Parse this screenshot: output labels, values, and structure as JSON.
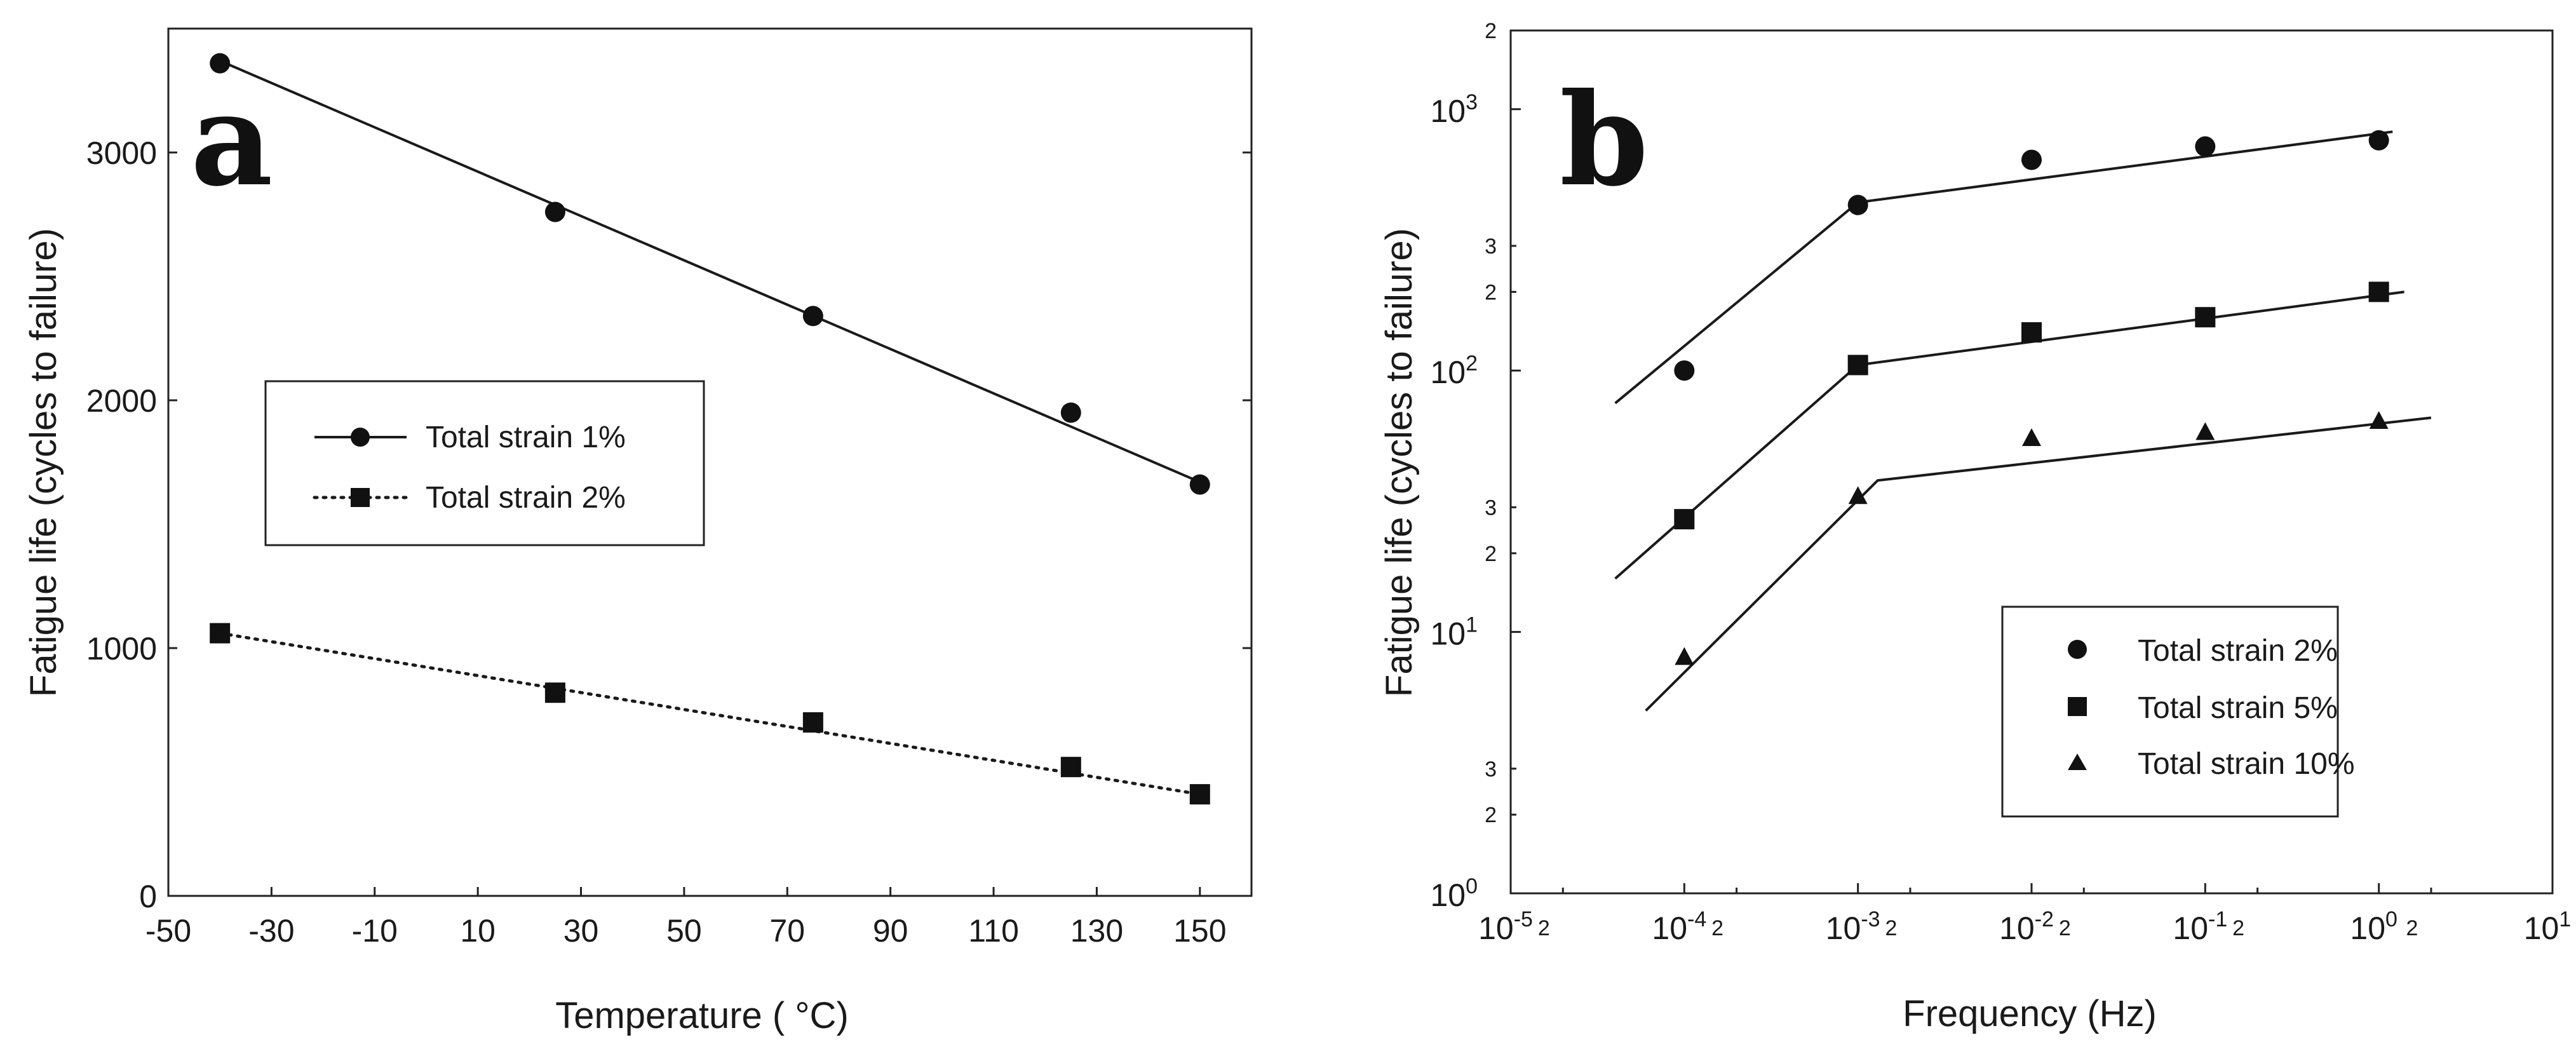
{
  "chart_data": [
    {
      "type": "line",
      "panel_label": "a",
      "xlabel": "Temperature ( °C)",
      "ylabel": "Fatigue life (cycles to failure)",
      "xlim": [
        -50,
        160
      ],
      "ylim": [
        0,
        3500
      ],
      "xticks": [
        -50,
        -30,
        -10,
        10,
        30,
        50,
        70,
        90,
        110,
        130,
        150
      ],
      "yticks": [
        0,
        1000,
        2000,
        3000
      ],
      "legend_position": "center-left",
      "series": [
        {
          "name": "Total strain 1%",
          "marker": "circle",
          "line": "solid",
          "x": [
            -40,
            25,
            75,
            125,
            150
          ],
          "y": [
            3360,
            2760,
            2340,
            1950,
            1660
          ],
          "fit": [
            [
              -40,
              3370
            ],
            [
              150,
              1670
            ]
          ]
        },
        {
          "name": "Total strain 2%",
          "marker": "square",
          "line": "dotted",
          "x": [
            -40,
            25,
            75,
            125,
            150
          ],
          "y": [
            1060,
            820,
            700,
            520,
            410
          ],
          "fit": [
            [
              -40,
              1060
            ],
            [
              150,
              410
            ]
          ]
        }
      ]
    },
    {
      "type": "scatter",
      "panel_label": "b",
      "xlabel": "Frequency (Hz)",
      "ylabel": "Fatigue life (cycles to failure)",
      "xscale": "log",
      "yscale": "log",
      "xlim_log10": [
        -5,
        1
      ],
      "ylim_log10": [
        0,
        3.301
      ],
      "xticks_major": [
        {
          "base": "10",
          "exp": "-5",
          "log": -5
        },
        {
          "base": "10",
          "exp": "-4",
          "log": -4
        },
        {
          "base": "10",
          "exp": "-3",
          "log": -3
        },
        {
          "base": "10",
          "exp": "-2",
          "log": -2
        },
        {
          "base": "10",
          "exp": "-1",
          "log": -1
        },
        {
          "base": "10",
          "exp": "0",
          "log": 0
        },
        {
          "base": "10",
          "exp": "1",
          "log": 1
        }
      ],
      "xticks_minor": [
        {
          "label": "2",
          "log": -4.699
        },
        {
          "label": "2",
          "log": -3.699
        },
        {
          "label": "2",
          "log": -2.699
        },
        {
          "label": "2",
          "log": -1.699
        },
        {
          "label": "2",
          "log": -0.699
        },
        {
          "label": "2",
          "log": 0.301
        }
      ],
      "yticks_major": [
        {
          "base": "10",
          "exp": "0",
          "log": 0
        },
        {
          "base": "10",
          "exp": "1",
          "log": 1
        },
        {
          "base": "10",
          "exp": "2",
          "log": 2
        },
        {
          "base": "10",
          "exp": "3",
          "log": 3
        }
      ],
      "yticks_minor": [
        {
          "label": "2",
          "log": 0.301
        },
        {
          "label": "3",
          "log": 0.477
        },
        {
          "label": "2",
          "log": 1.301
        },
        {
          "label": "3",
          "log": 1.477
        },
        {
          "label": "2",
          "log": 2.301
        },
        {
          "label": "3",
          "log": 2.477
        },
        {
          "label": "2",
          "log": 3.301
        }
      ],
      "legend_position": "bottom-right",
      "series": [
        {
          "name": "Total strain 2%",
          "marker": "circle",
          "x": [
            0.0001,
            0.001,
            0.01,
            0.1,
            1
          ],
          "y": [
            100,
            430,
            640,
            720,
            760
          ],
          "fit": [
            [
              4e-05,
              75
            ],
            [
              0.001,
              440
            ],
            [
              1.2,
              820
            ]
          ]
        },
        {
          "name": "Total strain 5%",
          "marker": "square",
          "x": [
            0.0001,
            0.001,
            0.01,
            0.1,
            1
          ],
          "y": [
            27,
            105,
            140,
            160,
            200
          ],
          "fit": [
            [
              4e-05,
              16
            ],
            [
              0.001,
              105
            ],
            [
              1.4,
              200
            ]
          ]
        },
        {
          "name": "Total strain 10%",
          "marker": "triangle",
          "x": [
            0.0001,
            0.001,
            0.01,
            0.1,
            1
          ],
          "y": [
            8,
            33,
            55,
            58,
            64
          ],
          "fit": [
            [
              6e-05,
              5
            ],
            [
              0.0013,
              38
            ],
            [
              2,
              66
            ]
          ]
        }
      ]
    }
  ]
}
